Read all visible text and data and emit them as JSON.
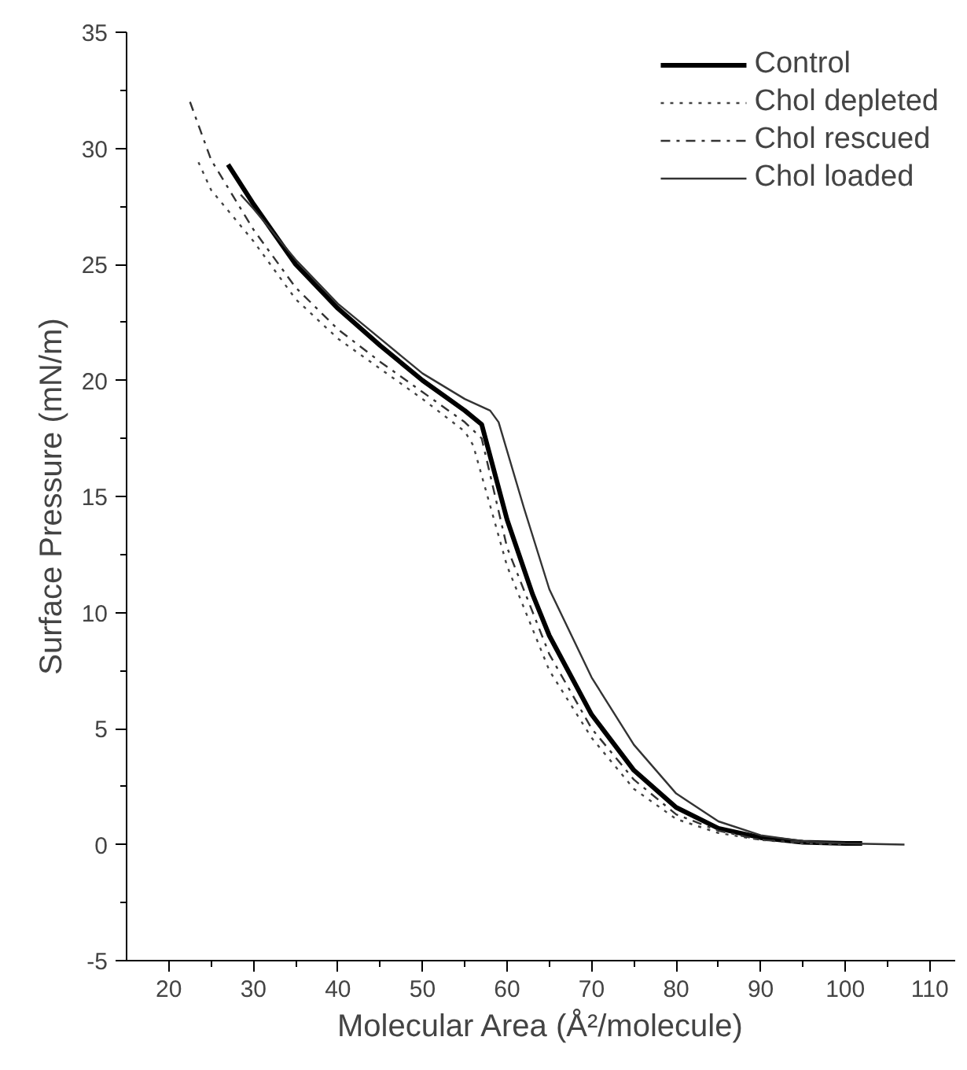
{
  "chart_data": {
    "type": "line",
    "xlabel": "Molecular Area (Å²/molecule)",
    "ylabel": "Surface Pressure (mN/m)",
    "xlim": [
      15,
      113
    ],
    "ylim": [
      -5,
      35
    ],
    "xticks": [
      20,
      30,
      40,
      50,
      60,
      70,
      80,
      90,
      100,
      110
    ],
    "yticks": [
      -5,
      0,
      5,
      10,
      15,
      20,
      25,
      30,
      35
    ],
    "grid": false,
    "legend": "top right",
    "marker": "none",
    "series": [
      {
        "name": "Control",
        "color": "#000000",
        "line_style": "solid",
        "x": [
          27,
          30,
          35,
          40,
          45,
          50,
          55,
          57,
          60,
          63,
          65,
          70,
          75,
          80,
          85,
          90,
          95,
          100,
          102
        ],
        "values": [
          29.3,
          27.6,
          25.0,
          23.1,
          21.5,
          20.0,
          18.7,
          18.1,
          14.0,
          10.8,
          9.0,
          5.6,
          3.2,
          1.6,
          0.7,
          0.3,
          0.1,
          0.05,
          0.05
        ]
      },
      {
        "name": "Chol depleted",
        "color": "#444444",
        "line_style": "dotted",
        "x": [
          23.5,
          25,
          30,
          35,
          40,
          45,
          50,
          55,
          56,
          60,
          65,
          70,
          75,
          80,
          85,
          90,
          95,
          100
        ],
        "values": [
          29.4,
          28.2,
          26.0,
          23.5,
          21.8,
          20.5,
          19.2,
          17.8,
          17.2,
          12.0,
          7.5,
          4.6,
          2.4,
          1.1,
          0.5,
          0.2,
          0.05,
          0
        ]
      },
      {
        "name": "Chol rescued",
        "color": "#333333",
        "line_style": "dashdot",
        "x": [
          22.5,
          25,
          30,
          35,
          40,
          45,
          50,
          55,
          57,
          60,
          65,
          70,
          75,
          80,
          85,
          90,
          95,
          100
        ],
        "values": [
          32.0,
          29.5,
          26.5,
          24.0,
          22.2,
          20.8,
          19.5,
          18.2,
          17.5,
          12.8,
          8.2,
          5.0,
          2.8,
          1.3,
          0.6,
          0.2,
          0.1,
          0.05
        ]
      },
      {
        "name": "Chol loaded",
        "color": "#333333",
        "line_style": "solid",
        "x": [
          28.5,
          30,
          35,
          40,
          45,
          50,
          55,
          58,
          59,
          62,
          65,
          70,
          75,
          80,
          85,
          90,
          95,
          100,
          107
        ],
        "values": [
          28.0,
          27.4,
          25.2,
          23.3,
          21.8,
          20.3,
          19.2,
          18.7,
          18.2,
          14.5,
          11.0,
          7.2,
          4.3,
          2.2,
          1.0,
          0.4,
          0.15,
          0.05,
          0
        ]
      }
    ]
  }
}
